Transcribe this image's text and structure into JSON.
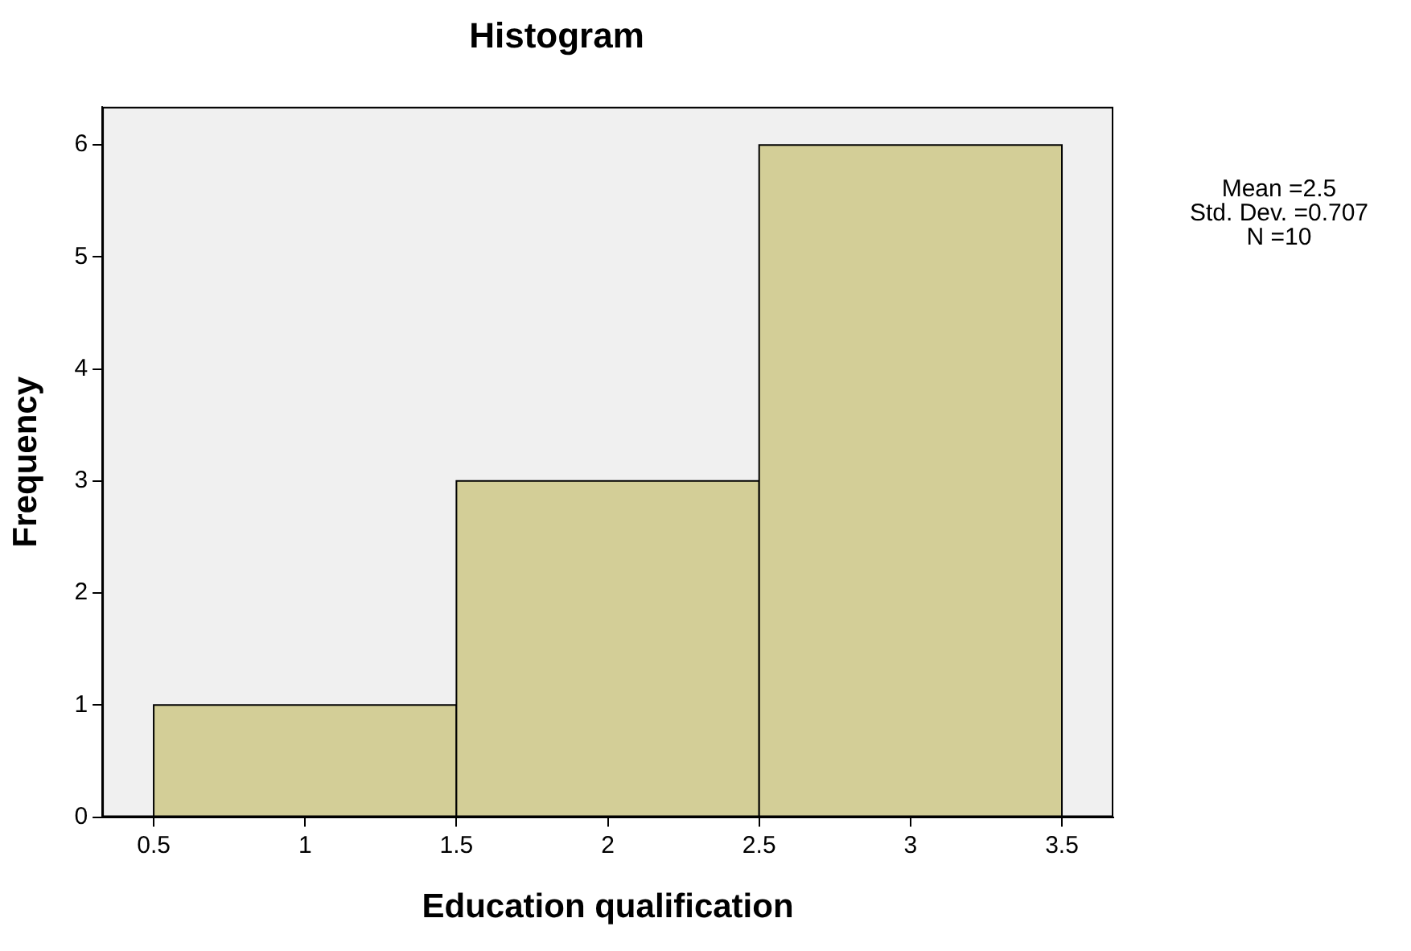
{
  "chart_data": {
    "type": "histogram",
    "title": "Histogram",
    "xlabel": "Education qualification",
    "ylabel": "Frequency",
    "bins": [
      0.5,
      1.5,
      2.5,
      3.5
    ],
    "values": [
      1,
      3,
      6
    ],
    "color": "#d3ce97",
    "xlim": [
      0.33,
      3.67
    ],
    "xticks": [
      0.5,
      1,
      1.5,
      2,
      2.5,
      3,
      3.5
    ],
    "ylim": [
      0,
      6.34
    ],
    "yticks": [
      0,
      1,
      2,
      3,
      4,
      5,
      6
    ],
    "grid": false,
    "annotations": [
      "Mean =2.5",
      "Std. Dev. =0.707",
      "N =10"
    ]
  }
}
